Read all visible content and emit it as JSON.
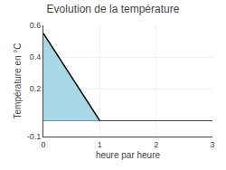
{
  "chart_data": {
    "type": "area",
    "title": "Evolution de la température",
    "xlabel": "heure par heure",
    "ylabel": "Température en °C",
    "x": [
      0,
      1
    ],
    "series": [
      {
        "type": "area",
        "color": "#a8d8e8",
        "values": [
          0.55,
          0.0
        ]
      },
      {
        "type": "line",
        "color": "#000000",
        "values": [
          0.55,
          0.0
        ]
      }
    ],
    "xlim": [
      0,
      3
    ],
    "ylim": [
      -0.1,
      0.6
    ],
    "xticks": [
      0,
      1,
      2,
      3
    ],
    "yticks": [
      -0.1,
      0.2,
      0.4,
      0.6
    ],
    "grid": true
  }
}
